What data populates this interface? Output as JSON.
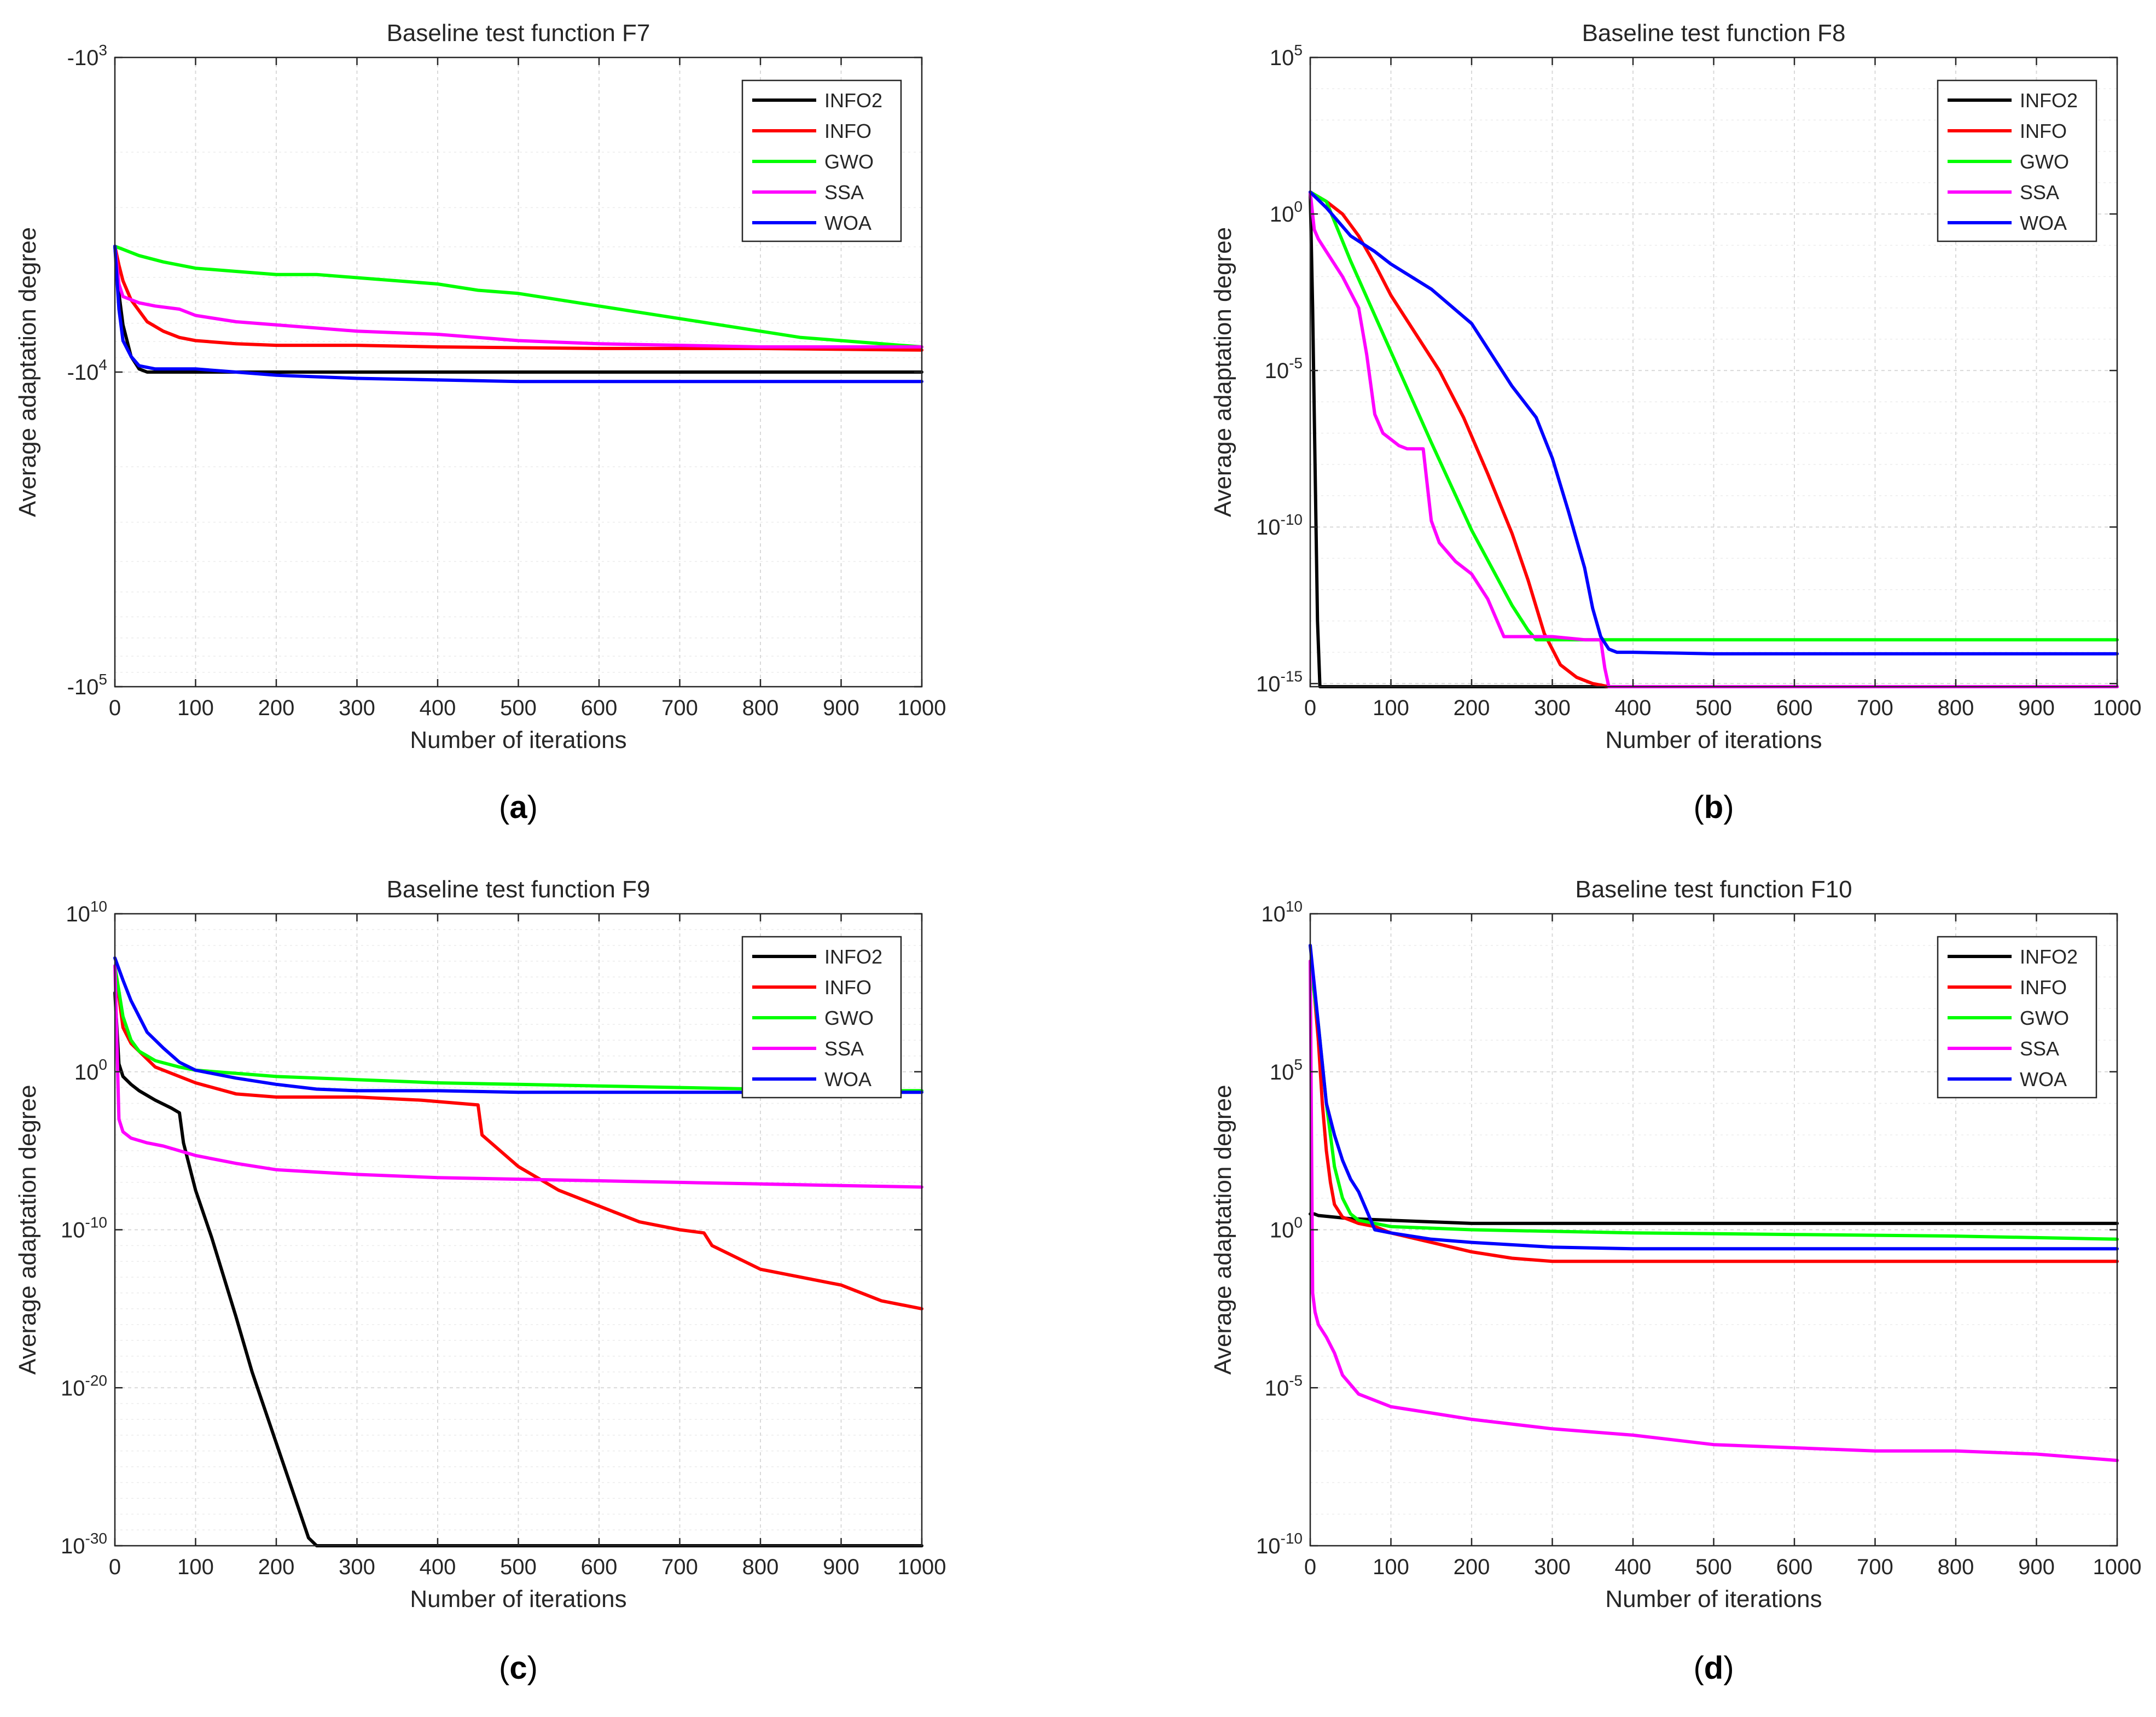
{
  "chart_data": [
    {
      "id": "a",
      "type": "line",
      "title": "Baseline test function F7",
      "xlabel": "Number of iterations",
      "ylabel": "Average adaptation degree",
      "panel_label": "a",
      "xlim": [
        0,
        1000
      ],
      "xticks": [
        0,
        100,
        200,
        300,
        400,
        500,
        600,
        700,
        800,
        900,
        1000
      ],
      "yscale": "log-negative",
      "ylim_exp": [
        3,
        5
      ],
      "ytick_labels": [
        {
          "exp": 3,
          "base": "-10",
          "sup": "3"
        },
        {
          "exp": 4,
          "base": "-10",
          "sup": "4"
        },
        {
          "exp": 5,
          "base": "-10",
          "sup": "5"
        }
      ],
      "legend": "top-right",
      "series": [
        {
          "name": "INFO2",
          "color": "#000000",
          "x": [
            0,
            5,
            10,
            20,
            30,
            40,
            60,
            100,
            200,
            400,
            600,
            800,
            1000
          ],
          "y": [
            3.6,
            3.75,
            3.85,
            3.95,
            3.99,
            4.0,
            4.0,
            4.0,
            4.0,
            4.0,
            4.0,
            4.0,
            4.0
          ]
        },
        {
          "name": "INFO",
          "color": "#ff0000",
          "x": [
            0,
            5,
            10,
            20,
            40,
            60,
            80,
            100,
            150,
            200,
            300,
            400,
            600,
            800,
            1000
          ],
          "y": [
            3.6,
            3.66,
            3.71,
            3.77,
            3.84,
            3.87,
            3.89,
            3.9,
            3.91,
            3.915,
            3.915,
            3.92,
            3.925,
            3.925,
            3.93
          ]
        },
        {
          "name": "GWO",
          "color": "#00ff00",
          "x": [
            0,
            10,
            30,
            60,
            100,
            150,
            200,
            250,
            300,
            350,
            400,
            450,
            500,
            550,
            600,
            650,
            700,
            750,
            800,
            850,
            900,
            950,
            1000
          ],
          "y": [
            3.6,
            3.61,
            3.63,
            3.65,
            3.67,
            3.68,
            3.69,
            3.69,
            3.7,
            3.71,
            3.72,
            3.74,
            3.75,
            3.77,
            3.79,
            3.81,
            3.83,
            3.85,
            3.87,
            3.89,
            3.9,
            3.91,
            3.92
          ]
        },
        {
          "name": "SSA",
          "color": "#ff00ff",
          "x": [
            0,
            5,
            10,
            30,
            50,
            80,
            100,
            150,
            200,
            250,
            300,
            400,
            500,
            600,
            700,
            800,
            900,
            1000
          ],
          "y": [
            3.6,
            3.72,
            3.76,
            3.78,
            3.79,
            3.8,
            3.82,
            3.84,
            3.85,
            3.86,
            3.87,
            3.88,
            3.9,
            3.91,
            3.915,
            3.92,
            3.92,
            3.92
          ]
        },
        {
          "name": "WOA",
          "color": "#0000ff",
          "x": [
            0,
            5,
            10,
            20,
            30,
            50,
            100,
            150,
            200,
            300,
            400,
            500,
            600,
            800,
            1000
          ],
          "y": [
            3.6,
            3.8,
            3.9,
            3.95,
            3.98,
            3.99,
            3.99,
            4.0,
            4.01,
            4.02,
            4.025,
            4.03,
            4.03,
            4.03,
            4.03
          ]
        }
      ]
    },
    {
      "id": "b",
      "type": "line",
      "title": "Baseline test function F8",
      "xlabel": "Number of iterations",
      "ylabel": "Average adaptation degree",
      "panel_label": "b",
      "xlim": [
        0,
        1000
      ],
      "xticks": [
        0,
        100,
        200,
        300,
        400,
        500,
        600,
        700,
        800,
        900,
        1000
      ],
      "yscale": "log",
      "ylim_exp": [
        -15.1,
        5
      ],
      "ytick_labels": [
        {
          "exp": 5,
          "base": "10",
          "sup": "5"
        },
        {
          "exp": 0,
          "base": "10",
          "sup": "0"
        },
        {
          "exp": -5,
          "base": "10",
          "sup": "-5"
        },
        {
          "exp": -10,
          "base": "10",
          "sup": "-10"
        },
        {
          "exp": -15,
          "base": "10",
          "sup": "-15"
        }
      ],
      "legend": "top-right",
      "series": [
        {
          "name": "INFO2",
          "color": "#000000",
          "x": [
            0,
            3,
            6,
            9,
            12,
            1000
          ],
          "y": [
            0.7,
            -3,
            -8,
            -13,
            -15.1,
            -15.1
          ]
        },
        {
          "name": "INFO",
          "color": "#ff0000",
          "x": [
            0,
            20,
            40,
            60,
            80,
            100,
            130,
            160,
            190,
            220,
            250,
            270,
            290,
            310,
            330,
            350,
            370
          ],
          "y": [
            0.7,
            0.4,
            0.0,
            -0.7,
            -1.6,
            -2.6,
            -3.8,
            -5.0,
            -6.5,
            -8.3,
            -10.2,
            -11.7,
            -13.4,
            -14.4,
            -14.8,
            -15.0,
            -15.1
          ]
        },
        {
          "name": "GWO",
          "color": "#00ff00",
          "x": [
            0,
            20,
            50,
            100,
            150,
            200,
            250,
            270,
            280,
            1000
          ],
          "y": [
            0.7,
            0.4,
            -1.5,
            -4.4,
            -7.3,
            -10.1,
            -12.5,
            -13.3,
            -13.6,
            -13.6
          ]
        },
        {
          "name": "SSA",
          "color": "#ff00ff",
          "x": [
            0,
            5,
            10,
            20,
            40,
            60,
            70,
            80,
            90,
            100,
            110,
            120,
            140,
            150,
            160,
            170,
            180,
            200,
            220,
            240,
            260,
            280,
            300,
            320,
            340,
            360,
            365,
            370,
            1000
          ],
          "y": [
            0.7,
            -0.5,
            -0.8,
            -1.2,
            -2.0,
            -3.0,
            -4.5,
            -6.4,
            -7.0,
            -7.2,
            -7.4,
            -7.5,
            -7.5,
            -9.8,
            -10.5,
            -10.8,
            -11.1,
            -11.5,
            -12.3,
            -13.5,
            -13.5,
            -13.5,
            -13.5,
            -13.55,
            -13.6,
            -13.6,
            -14.5,
            -15.1,
            -15.1
          ]
        },
        {
          "name": "WOA",
          "color": "#0000ff",
          "x": [
            0,
            20,
            50,
            80,
            100,
            150,
            200,
            250,
            280,
            300,
            320,
            340,
            350,
            360,
            370,
            380,
            400,
            500,
            1000
          ],
          "y": [
            0.7,
            0.2,
            -0.7,
            -1.2,
            -1.6,
            -2.4,
            -3.5,
            -5.5,
            -6.5,
            -7.8,
            -9.5,
            -11.3,
            -12.6,
            -13.5,
            -13.9,
            -14.0,
            -14.0,
            -14.05,
            -14.05
          ]
        }
      ]
    },
    {
      "id": "c",
      "type": "line",
      "title": "Baseline test function F9",
      "xlabel": "Number of iterations",
      "ylabel": "Average adaptation degree",
      "panel_label": "c",
      "xlim": [
        0,
        1000
      ],
      "xticks": [
        0,
        100,
        200,
        300,
        400,
        500,
        600,
        700,
        800,
        900,
        1000
      ],
      "yscale": "log",
      "ylim_exp": [
        -30,
        10
      ],
      "ytick_labels": [
        {
          "exp": 10,
          "base": "10",
          "sup": "10"
        },
        {
          "exp": 0,
          "base": "10",
          "sup": "0"
        },
        {
          "exp": -10,
          "base": "10",
          "sup": "-10"
        },
        {
          "exp": -20,
          "base": "10",
          "sup": "-20"
        },
        {
          "exp": -30,
          "base": "10",
          "sup": "-30"
        }
      ],
      "legend": "top-right",
      "series": [
        {
          "name": "INFO2",
          "color": "#000000",
          "x": [
            0,
            5,
            10,
            20,
            30,
            50,
            70,
            80,
            85,
            100,
            120,
            150,
            170,
            200,
            230,
            240,
            250,
            260,
            1000
          ],
          "y": [
            5,
            0.5,
            -0.3,
            -0.8,
            -1.2,
            -1.8,
            -2.3,
            -2.6,
            -4.5,
            -7.5,
            -10.5,
            -15.5,
            -19.0,
            -23.5,
            -28.0,
            -29.5,
            -30,
            -30,
            -30
          ]
        },
        {
          "name": "INFO",
          "color": "#ff0000",
          "x": [
            0,
            10,
            20,
            50,
            100,
            150,
            200,
            300,
            380,
            450,
            455,
            500,
            550,
            600,
            650,
            700,
            730,
            740,
            800,
            900,
            950,
            1000
          ],
          "y": [
            6.7,
            2.8,
            1.8,
            0.3,
            -0.7,
            -1.4,
            -1.6,
            -1.6,
            -1.8,
            -2.1,
            -4.0,
            -6.0,
            -7.5,
            -8.5,
            -9.5,
            -10.0,
            -10.2,
            -11.0,
            -12.5,
            -13.5,
            -14.5,
            -15.0
          ]
        },
        {
          "name": "GWO",
          "color": "#00ff00",
          "x": [
            0,
            10,
            20,
            30,
            50,
            80,
            100,
            150,
            200,
            300,
            400,
            500,
            600,
            700,
            800,
            900,
            1000
          ],
          "y": [
            6.7,
            3.5,
            2.0,
            1.3,
            0.7,
            0.3,
            0.1,
            -0.1,
            -0.3,
            -0.5,
            -0.7,
            -0.8,
            -0.9,
            -1.0,
            -1.1,
            -1.2,
            -1.2
          ]
        },
        {
          "name": "SSA",
          "color": "#ff00ff",
          "x": [
            0,
            5,
            10,
            20,
            40,
            60,
            80,
            100,
            150,
            200,
            300,
            400,
            500,
            600,
            700,
            800,
            900,
            1000
          ],
          "y": [
            6.7,
            -3.0,
            -3.8,
            -4.2,
            -4.5,
            -4.7,
            -5.0,
            -5.3,
            -5.8,
            -6.2,
            -6.5,
            -6.7,
            -6.8,
            -6.9,
            -7.0,
            -7.1,
            -7.2,
            -7.3
          ]
        },
        {
          "name": "WOA",
          "color": "#0000ff",
          "x": [
            0,
            10,
            20,
            30,
            40,
            50,
            60,
            80,
            100,
            150,
            200,
            250,
            300,
            400,
            500,
            600,
            700,
            800,
            900,
            1000
          ],
          "y": [
            7.2,
            5.8,
            4.5,
            3.5,
            2.5,
            2.0,
            1.5,
            0.6,
            0.1,
            -0.4,
            -0.8,
            -1.1,
            -1.2,
            -1.2,
            -1.3,
            -1.3,
            -1.3,
            -1.3,
            -1.3,
            -1.3
          ]
        }
      ]
    },
    {
      "id": "d",
      "type": "line",
      "title": "Baseline test function F10",
      "xlabel": "Number of iterations",
      "ylabel": "Average adaptation degree",
      "panel_label": "d",
      "xlim": [
        0,
        1000
      ],
      "xticks": [
        0,
        100,
        200,
        300,
        400,
        500,
        600,
        700,
        800,
        900,
        1000
      ],
      "yscale": "log",
      "ylim_exp": [
        -10,
        10
      ],
      "ytick_labels": [
        {
          "exp": 10,
          "base": "10",
          "sup": "10"
        },
        {
          "exp": 5,
          "base": "10",
          "sup": "5"
        },
        {
          "exp": 0,
          "base": "10",
          "sup": "0"
        },
        {
          "exp": -5,
          "base": "10",
          "sup": "-5"
        },
        {
          "exp": -10,
          "base": "10",
          "sup": "-10"
        }
      ],
      "legend": "top-right",
      "series": [
        {
          "name": "INFO2",
          "color": "#000000",
          "x": [
            0,
            5,
            10,
            50,
            100,
            200,
            400,
            600,
            800,
            1000
          ],
          "y": [
            0.5,
            0.5,
            0.45,
            0.35,
            0.3,
            0.2,
            0.2,
            0.2,
            0.2,
            0.2
          ]
        },
        {
          "name": "INFO",
          "color": "#ff0000",
          "x": [
            0,
            5,
            10,
            15,
            20,
            25,
            30,
            40,
            60,
            80,
            100,
            150,
            200,
            250,
            300,
            400,
            500,
            600,
            800,
            1000
          ],
          "y": [
            8.5,
            7.5,
            6.0,
            4.0,
            2.5,
            1.5,
            0.8,
            0.4,
            0.2,
            0.1,
            -0.1,
            -0.4,
            -0.7,
            -0.9,
            -1.0,
            -1.0,
            -1.0,
            -1.0,
            -1.0,
            -1.0
          ]
        },
        {
          "name": "GWO",
          "color": "#00ff00",
          "x": [
            0,
            10,
            20,
            30,
            40,
            50,
            60,
            80,
            100,
            200,
            400,
            600,
            800,
            1000
          ],
          "y": [
            8.5,
            6.5,
            4.0,
            2.0,
            1.0,
            0.5,
            0.3,
            0.2,
            0.1,
            0.0,
            -0.1,
            -0.15,
            -0.2,
            -0.3
          ]
        },
        {
          "name": "SSA",
          "color": "#ff00ff",
          "x": [
            0,
            3,
            6,
            10,
            20,
            30,
            40,
            60,
            100,
            150,
            200,
            300,
            400,
            500,
            600,
            700,
            800,
            900,
            1000
          ],
          "y": [
            8.5,
            -2.0,
            -2.6,
            -3.0,
            -3.4,
            -3.9,
            -4.6,
            -5.2,
            -5.6,
            -5.8,
            -6.0,
            -6.3,
            -6.5,
            -6.8,
            -6.9,
            -7.0,
            -7.0,
            -7.1,
            -7.3
          ]
        },
        {
          "name": "WOA",
          "color": "#0000ff",
          "x": [
            0,
            10,
            20,
            30,
            40,
            50,
            60,
            70,
            80,
            100,
            150,
            200,
            300,
            400,
            500,
            600,
            800,
            1000
          ],
          "y": [
            9.0,
            6.5,
            4.0,
            3.0,
            2.2,
            1.6,
            1.2,
            0.6,
            0.0,
            -0.1,
            -0.3,
            -0.4,
            -0.55,
            -0.6,
            -0.6,
            -0.6,
            -0.6,
            -0.6
          ]
        }
      ]
    }
  ]
}
